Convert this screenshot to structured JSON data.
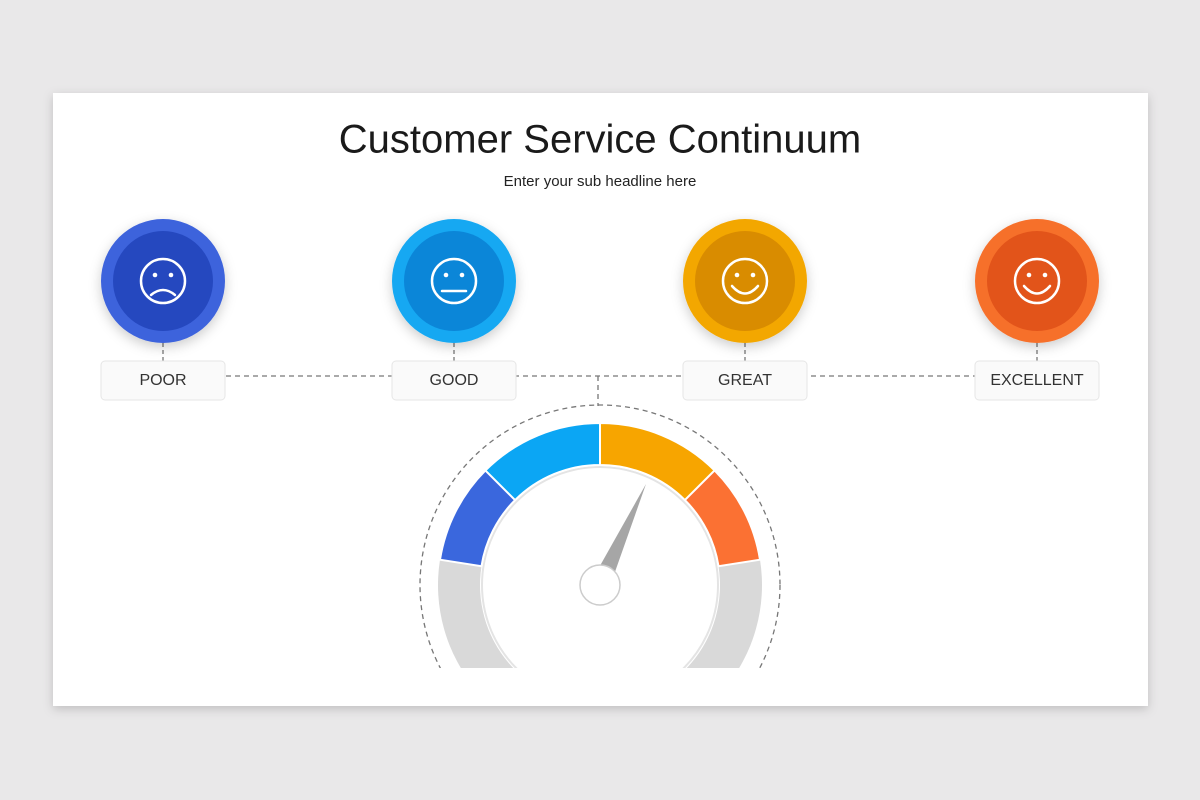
{
  "header": {
    "title": "Customer Service Continuum",
    "subtitle": "Enter your sub headline here"
  },
  "levels": [
    {
      "label": "POOR"
    },
    {
      "label": "GOOD"
    },
    {
      "label": "GREAT"
    },
    {
      "label": "EXCELLENT"
    }
  ]
}
